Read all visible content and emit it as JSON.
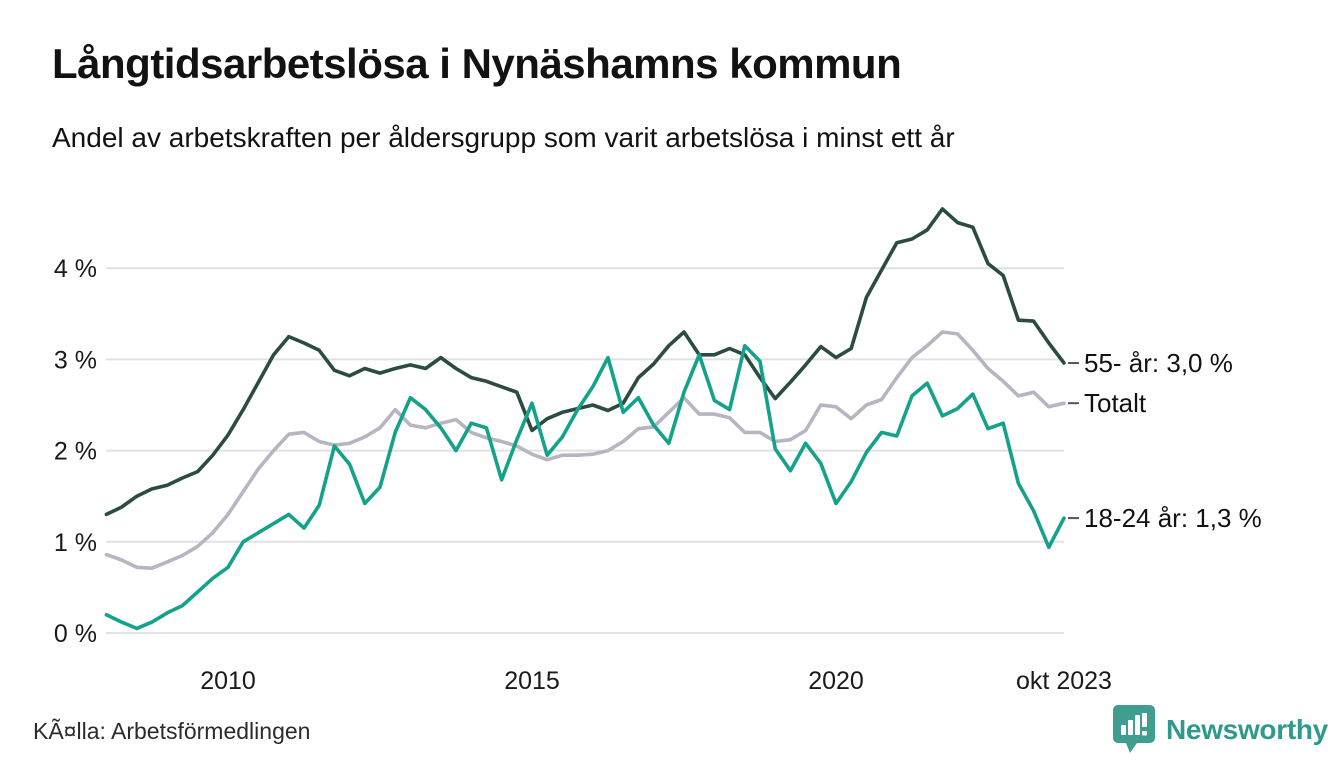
{
  "header": {
    "title": "Långtidsarbetslösa i Nynäshamns kommun",
    "subtitle": "Andel av arbetskraften per åldersgrupp som varit arbetslösa i minst ett år"
  },
  "footer": {
    "source": "KÃ¤lla: Arbetsförmedlingen",
    "brand": "Newsworthy"
  },
  "colors": {
    "series_55": "#2a4c42",
    "series_total": "#b7b5c1",
    "series_18_24": "#15a28a",
    "grid": "#e2e2e4",
    "axis_text": "#1a1a1a",
    "label_text": "#121212",
    "connector": "#555555",
    "brand_teal": "#3f9e90",
    "brand_text": "#2f998b"
  },
  "chart_data": {
    "type": "line",
    "title": "Långtidsarbetslösa i Nynäshamns kommun",
    "subtitle": "Andel av arbetskraften per åldersgrupp som varit arbetslösa i minst ett år",
    "unit": "%",
    "x_start": 2008.0,
    "x_step": 0.25,
    "x_end_label": "okt 2023",
    "ylim": [
      0,
      4.75
    ],
    "grid": true,
    "legend_position": "right-end-labels",
    "y_ticks": [
      {
        "value": 0,
        "label": "0 %"
      },
      {
        "value": 1,
        "label": "1 %"
      },
      {
        "value": 2,
        "label": "2 %"
      },
      {
        "value": 3,
        "label": "3 %"
      },
      {
        "value": 4,
        "label": "4 %"
      }
    ],
    "x_ticks": [
      {
        "x": 2010,
        "label": "2010"
      },
      {
        "x": 2015,
        "label": "2015"
      },
      {
        "x": 2020,
        "label": "2020"
      },
      {
        "x": 2023.75,
        "label": "okt 2023"
      }
    ],
    "series": [
      {
        "name": "55- år",
        "label": "55- år: 3,0 %",
        "end_value_label": "3,0 %",
        "color_key": "series_55",
        "values": [
          1.3,
          1.38,
          1.5,
          1.58,
          1.62,
          1.7,
          1.77,
          1.95,
          2.17,
          2.45,
          2.75,
          3.05,
          3.25,
          3.18,
          3.1,
          2.88,
          2.82,
          2.9,
          2.85,
          2.9,
          2.94,
          2.9,
          3.02,
          2.9,
          2.8,
          2.76,
          2.7,
          2.64,
          2.22,
          2.35,
          2.42,
          2.46,
          2.5,
          2.44,
          2.52,
          2.8,
          2.95,
          3.15,
          3.3,
          3.05,
          3.05,
          3.12,
          3.05,
          2.8,
          2.57,
          2.75,
          2.94,
          3.14,
          3.02,
          3.12,
          3.68,
          3.98,
          4.28,
          4.32,
          4.42,
          4.65,
          4.5,
          4.45,
          4.05,
          3.92,
          3.43,
          3.42,
          3.18,
          2.96
        ]
      },
      {
        "name": "Totalt",
        "label": "Totalt",
        "end_value_label": "",
        "color_key": "series_total",
        "values": [
          0.86,
          0.8,
          0.72,
          0.71,
          0.78,
          0.85,
          0.95,
          1.1,
          1.3,
          1.55,
          1.8,
          2.0,
          2.18,
          2.2,
          2.1,
          2.06,
          2.08,
          2.15,
          2.25,
          2.45,
          2.28,
          2.25,
          2.3,
          2.34,
          2.2,
          2.14,
          2.1,
          2.05,
          1.96,
          1.9,
          1.95,
          1.95,
          1.96,
          2.0,
          2.1,
          2.24,
          2.26,
          2.42,
          2.58,
          2.4,
          2.4,
          2.36,
          2.2,
          2.2,
          2.1,
          2.12,
          2.22,
          2.5,
          2.48,
          2.35,
          2.5,
          2.56,
          2.8,
          3.02,
          3.15,
          3.3,
          3.28,
          3.1,
          2.9,
          2.76,
          2.6,
          2.64,
          2.48,
          2.52
        ]
      },
      {
        "name": "18-24 år",
        "label": "18-24 år: 1,3 %",
        "end_value_label": "1,3 %",
        "color_key": "series_18_24",
        "values": [
          0.2,
          0.12,
          0.05,
          0.12,
          0.22,
          0.3,
          0.45,
          0.6,
          0.72,
          1.0,
          1.1,
          1.2,
          1.3,
          1.15,
          1.4,
          2.05,
          1.85,
          1.42,
          1.6,
          2.2,
          2.58,
          2.45,
          2.25,
          2.0,
          2.3,
          2.25,
          1.68,
          2.12,
          2.52,
          1.95,
          2.15,
          2.45,
          2.7,
          3.02,
          2.42,
          2.58,
          2.28,
          2.08,
          2.64,
          3.05,
          2.55,
          2.45,
          3.15,
          2.98,
          2.02,
          1.78,
          2.08,
          1.86,
          1.42,
          1.66,
          1.98,
          2.2,
          2.16,
          2.6,
          2.74,
          2.38,
          2.46,
          2.62,
          2.24,
          2.3,
          1.64,
          1.34,
          0.94,
          1.26
        ]
      }
    ]
  }
}
